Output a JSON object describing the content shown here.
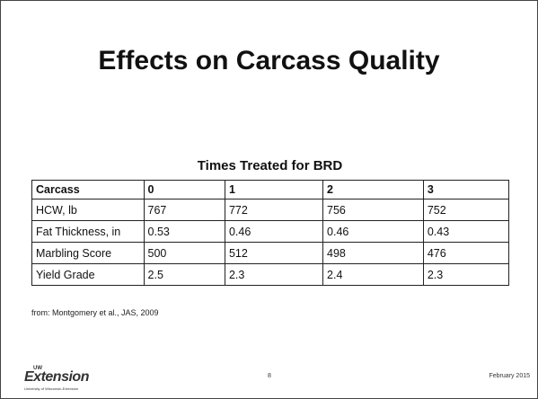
{
  "title": "Effects on Carcass Quality",
  "table": {
    "caption": "Times Treated for BRD",
    "header": [
      "Carcass",
      "0",
      "1",
      "2",
      "3"
    ],
    "rows": [
      [
        "HCW, lb",
        767,
        772,
        756,
        752
      ],
      [
        "Fat Thickness, in",
        0.53,
        0.46,
        0.46,
        0.43
      ],
      [
        "Marbling Score",
        500,
        512,
        498,
        476
      ],
      [
        "Yield Grade",
        2.5,
        2.3,
        2.4,
        2.3
      ]
    ]
  },
  "source": "from: Montgomery et al., JAS, 2009",
  "footer": {
    "logo_top": "UW",
    "logo": "Extension",
    "logo_sub": "University of Wisconsin-Extension",
    "page": "8",
    "date": "February 2015"
  }
}
